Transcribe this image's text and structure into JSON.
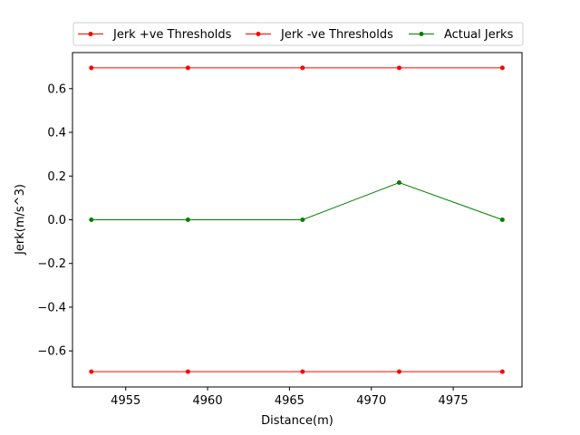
{
  "chart_data": {
    "type": "line",
    "title": "",
    "xlabel": "Distance(m)",
    "ylabel": "Jerk(m/s^3)",
    "xlim": [
      4951.75,
      4979.2
    ],
    "ylim": [
      -0.765,
      0.765
    ],
    "x": [
      4952.9,
      4958.8,
      4965.8,
      4971.7,
      4978.0
    ],
    "x_ticks": [
      4955,
      4960,
      4965,
      4970,
      4975
    ],
    "y_ticks": [
      -0.6,
      -0.4,
      -0.2,
      0.0,
      0.2,
      0.4,
      0.6
    ],
    "y_tick_labels": [
      "−0.6",
      "−0.4",
      "−0.2",
      "0.0",
      "0.2",
      "0.4",
      "0.6"
    ],
    "grid": false,
    "legend_position": "top-center-outside",
    "series": [
      {
        "name": "Jerk +ve Thresholds",
        "color": "#ff0000",
        "values": [
          0.695,
          0.695,
          0.695,
          0.695,
          0.695
        ]
      },
      {
        "name": "Jerk -ve Thresholds",
        "color": "#ff0000",
        "values": [
          -0.695,
          -0.695,
          -0.695,
          -0.695,
          -0.695
        ]
      },
      {
        "name": "Actual Jerks",
        "color": "#008000",
        "values": [
          0.0,
          0.0,
          0.0,
          0.17,
          0.0
        ]
      }
    ]
  }
}
